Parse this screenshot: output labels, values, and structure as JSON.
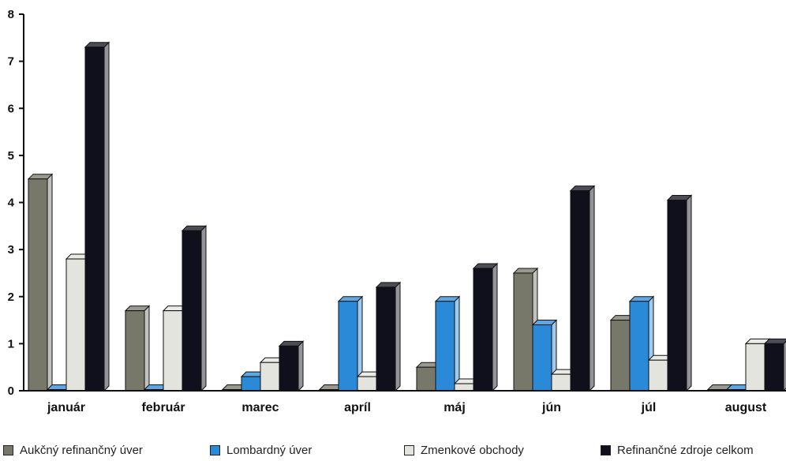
{
  "chart_data": {
    "type": "bar",
    "categories": [
      "január",
      "február",
      "marec",
      "apríl",
      "máj",
      "jún",
      "júl",
      "august"
    ],
    "series": [
      {
        "name": "Aukčný refinančný úver",
        "color": "#77776a",
        "values": [
          4.5,
          1.7,
          0.0,
          0.0,
          0.5,
          2.5,
          1.5,
          0.0
        ]
      },
      {
        "name": "Lombardný úver",
        "color": "#2b8ad8",
        "values": [
          0.0,
          0.0,
          0.3,
          1.9,
          1.9,
          1.4,
          1.9,
          0.0
        ]
      },
      {
        "name": "Zmenkové obchody",
        "color": "#e4e4de",
        "values": [
          2.8,
          1.7,
          0.6,
          0.3,
          0.15,
          0.35,
          0.65,
          1.0
        ]
      },
      {
        "name": "Refinančné zdroje celkom",
        "color": "#10101c",
        "values": [
          7.3,
          3.4,
          0.95,
          2.2,
          2.6,
          4.25,
          4.05,
          1.0
        ]
      }
    ],
    "ylim": [
      0,
      8
    ],
    "yticks": [
      "0",
      "1",
      "2",
      "3",
      "4",
      "5",
      "6",
      "7",
      "8"
    ],
    "grid": false,
    "legend_position": "bottom"
  }
}
